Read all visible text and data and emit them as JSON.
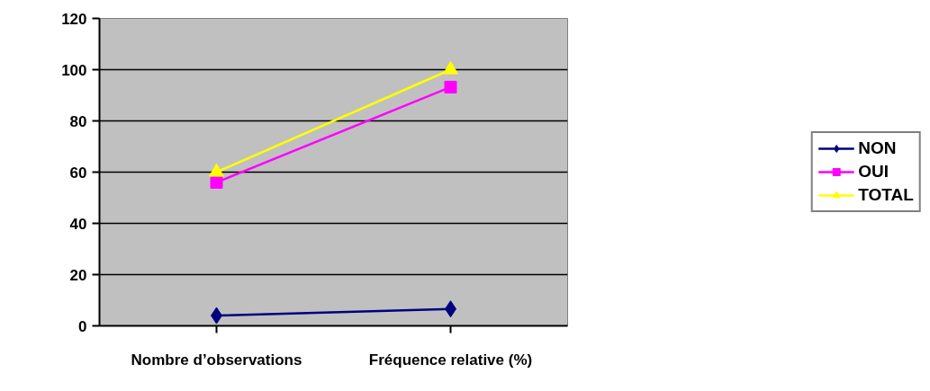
{
  "chart_data": {
    "type": "line",
    "categories": [
      "Nombre d’observations",
      "Fréquence relative (%)"
    ],
    "series": [
      {
        "name": "NON",
        "color": "#000080",
        "values": [
          4,
          6.6
        ],
        "marker": "diamond"
      },
      {
        "name": "OUI",
        "color": "#ff00ff",
        "values": [
          56,
          93.2
        ],
        "marker": "square"
      },
      {
        "name": "TOTAL",
        "color": "#ffff00",
        "values": [
          60,
          100
        ],
        "marker": "triangle"
      }
    ],
    "ylim": [
      0,
      120
    ],
    "yticks": [
      0,
      20,
      40,
      60,
      80,
      100,
      120
    ],
    "grid": "y",
    "legend": "right"
  }
}
